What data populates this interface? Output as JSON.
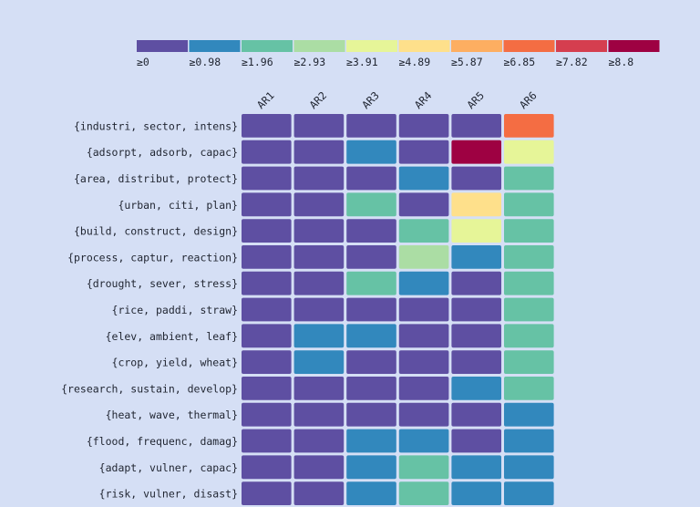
{
  "chart_data": {
    "type": "heatmap",
    "x_categories": [
      "AR1",
      "AR2",
      "AR3",
      "AR4",
      "AR5",
      "AR6"
    ],
    "y_categories": [
      "{industri, sector, intens}",
      "{adsorpt, adsorb, capac}",
      "{area, distribut, protect}",
      "{urban, citi, plan}",
      "{build, construct, design}",
      "{process, captur, reaction}",
      "{drought, sever, stress}",
      "{rice, paddi, straw}",
      "{elev, ambient, leaf}",
      "{crop, yield, wheat}",
      "{research, sustain, develop}",
      "{heat, wave, thermal}",
      "{flood, frequenc, damag}",
      "{adapt, vulner, capac}",
      "{risk, vulner, disast}"
    ],
    "color_bins": [
      {
        "label": "≥0",
        "threshold": 0,
        "color": "#5e4fa2"
      },
      {
        "label": "≥0.98",
        "threshold": 0.98,
        "color": "#3288bd"
      },
      {
        "label": "≥1.96",
        "threshold": 1.96,
        "color": "#66c2a5"
      },
      {
        "label": "≥2.93",
        "threshold": 2.93,
        "color": "#abdda4"
      },
      {
        "label": "≥3.91",
        "threshold": 3.91,
        "color": "#e6f598"
      },
      {
        "label": "≥4.89",
        "threshold": 4.89,
        "color": "#fee08b"
      },
      {
        "label": "≥5.87",
        "threshold": 5.87,
        "color": "#fdae61"
      },
      {
        "label": "≥6.85",
        "threshold": 6.85,
        "color": "#f46d43"
      },
      {
        "label": "≥7.82",
        "threshold": 7.82,
        "color": "#d53e4f"
      },
      {
        "label": "≥8.8",
        "threshold": 8.8,
        "color": "#9e0142"
      }
    ],
    "bin_matrix": [
      [
        0,
        0,
        0,
        0,
        0,
        7
      ],
      [
        0,
        0,
        1,
        0,
        9,
        4
      ],
      [
        0,
        0,
        0,
        1,
        0,
        2
      ],
      [
        0,
        0,
        2,
        0,
        5,
        2
      ],
      [
        0,
        0,
        0,
        2,
        4,
        2
      ],
      [
        0,
        0,
        0,
        3,
        1,
        2
      ],
      [
        0,
        0,
        2,
        1,
        0,
        2
      ],
      [
        0,
        0,
        0,
        0,
        0,
        2
      ],
      [
        0,
        1,
        1,
        0,
        0,
        2
      ],
      [
        0,
        1,
        0,
        0,
        0,
        2
      ],
      [
        0,
        0,
        0,
        0,
        1,
        2
      ],
      [
        0,
        0,
        0,
        0,
        0,
        1
      ],
      [
        0,
        0,
        1,
        1,
        0,
        1
      ],
      [
        0,
        0,
        1,
        2,
        1,
        1
      ],
      [
        0,
        0,
        1,
        2,
        1,
        1
      ]
    ],
    "legend_placement": "top",
    "grid": false
  }
}
